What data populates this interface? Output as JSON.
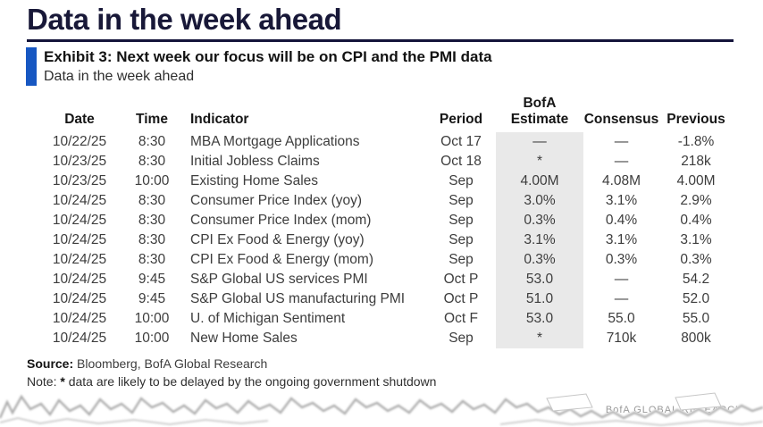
{
  "page": {
    "title": "Data in the week ahead"
  },
  "exhibit": {
    "heading": "Exhibit 3: Next week our focus will be on CPI and the PMI data",
    "subtitle": "Data in the week ahead"
  },
  "table": {
    "headers": {
      "date": "Date",
      "time": "Time",
      "indicator": "Indicator",
      "period": "Period",
      "estimate_line1": "BofA",
      "estimate_line2": "Estimate",
      "consensus": "Consensus",
      "previous": "Previous"
    },
    "rows": [
      {
        "date": "10/22/25",
        "time": "8:30",
        "indicator": "MBA Mortgage Applications",
        "period": "Oct 17",
        "estimate": "—",
        "consensus": "—",
        "previous": "-1.8%"
      },
      {
        "date": "10/23/25",
        "time": "8:30",
        "indicator": "Initial Jobless Claims",
        "period": "Oct 18",
        "estimate": "*",
        "consensus": "—",
        "previous": "218k"
      },
      {
        "date": "10/23/25",
        "time": "10:00",
        "indicator": "Existing Home Sales",
        "period": "Sep",
        "estimate": "4.00M",
        "consensus": "4.08M",
        "previous": "4.00M"
      },
      {
        "date": "10/24/25",
        "time": "8:30",
        "indicator": "Consumer Price Index (yoy)",
        "period": "Sep",
        "estimate": "3.0%",
        "consensus": "3.1%",
        "previous": "2.9%"
      },
      {
        "date": "10/24/25",
        "time": "8:30",
        "indicator": "Consumer Price Index (mom)",
        "period": "Sep",
        "estimate": "0.3%",
        "consensus": "0.4%",
        "previous": "0.4%"
      },
      {
        "date": "10/24/25",
        "time": "8:30",
        "indicator": "CPI Ex Food & Energy (yoy)",
        "period": "Sep",
        "estimate": "3.1%",
        "consensus": "3.1%",
        "previous": "3.1%"
      },
      {
        "date": "10/24/25",
        "time": "8:30",
        "indicator": "CPI Ex Food & Energy (mom)",
        "period": "Sep",
        "estimate": "0.3%",
        "consensus": "0.3%",
        "previous": "0.3%"
      },
      {
        "date": "10/24/25",
        "time": "9:45",
        "indicator": "S&P Global US services PMI",
        "period": "Oct P",
        "estimate": "53.0",
        "consensus": "—",
        "previous": "54.2"
      },
      {
        "date": "10/24/25",
        "time": "9:45",
        "indicator": "S&P Global US manufacturing PMI",
        "period": "Oct P",
        "estimate": "51.0",
        "consensus": "—",
        "previous": "52.0"
      },
      {
        "date": "10/24/25",
        "time": "10:00",
        "indicator": "U. of Michigan Sentiment",
        "period": "Oct F",
        "estimate": "53.0",
        "consensus": "55.0",
        "previous": "55.0"
      },
      {
        "date": "10/24/25",
        "time": "10:00",
        "indicator": "New Home Sales",
        "period": "Sep",
        "estimate": "*",
        "consensus": "710k",
        "previous": "800k"
      }
    ]
  },
  "footer": {
    "source_label": "Source:",
    "source_text": "Bloomberg, BofA Global Research",
    "note_label": "Note:",
    "note_star": "*",
    "note_text": "data are likely to be delayed by the ongoing government shutdown"
  },
  "watermark": {
    "text": "BofA GLOBAL RESEARCH"
  },
  "colors": {
    "title_navy": "#181838",
    "rule_navy": "#14143a",
    "accent_blue": "#1757c2",
    "estimate_band_gray": "#e9e9e9",
    "body_text": "#3d3d3d",
    "watermark_gray": "#9a9a9a"
  }
}
